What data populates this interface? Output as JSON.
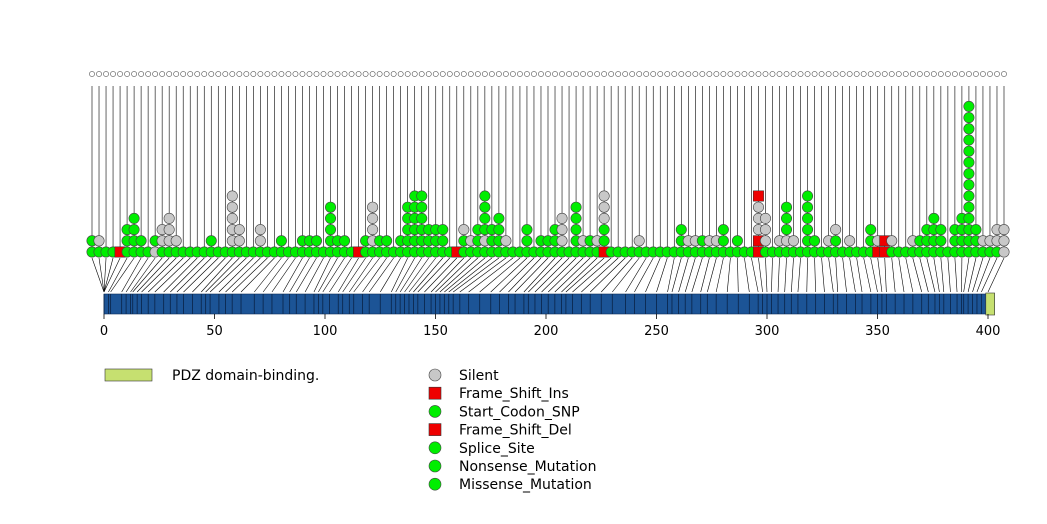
{
  "chart_data": {
    "type": "lollipop",
    "title": "",
    "xlabel": "",
    "ylabel": "",
    "xlim": [
      0,
      403
    ],
    "x_ticks": [
      0,
      50,
      100,
      150,
      200,
      250,
      300,
      350,
      400
    ],
    "protein_length": 403,
    "domains": [
      {
        "name": "PDZ domain-binding.",
        "start": 399,
        "end": 403,
        "color": "#c6e070"
      }
    ],
    "legend": {
      "domains": [
        {
          "label": "PDZ domain-binding.",
          "color": "#c6e070",
          "shape": "rect"
        }
      ],
      "mutation_types": [
        {
          "label": "Silent",
          "color": "#c8c8c8",
          "shape": "circle"
        },
        {
          "label": "Frame_Shift_Ins",
          "color": "#ee0000",
          "shape": "square"
        },
        {
          "label": "Start_Codon_SNP",
          "color": "#00ee00",
          "shape": "circle"
        },
        {
          "label": "Frame_Shift_Del",
          "color": "#ee0000",
          "shape": "square"
        },
        {
          "label": "Splice_Site",
          "color": "#00ee00",
          "shape": "circle"
        },
        {
          "label": "Nonsense_Mutation",
          "color": "#00ee00",
          "shape": "circle"
        },
        {
          "label": "Missense_Mutation",
          "color": "#00ee00",
          "shape": "circle"
        }
      ]
    },
    "colors": {
      "Silent": "#c8c8c8",
      "Missense_Mutation": "#00ee00",
      "Nonsense_Mutation": "#00ee00",
      "Splice_Site": "#00ee00",
      "Start_Codon_SNP": "#00ee00",
      "Frame_Shift_Ins": "#ee0000",
      "Frame_Shift_Del": "#ee0000",
      "protein_bar": "#1c5496",
      "domain": "#c6e070"
    },
    "mutation_stacks": [
      {
        "pos": -5,
        "types": [
          "M",
          "M"
        ]
      },
      {
        "pos": -4,
        "types": [
          "M",
          "S"
        ]
      },
      {
        "pos": -3,
        "types": [
          "M"
        ]
      },
      {
        "pos": -2,
        "types": [
          "M"
        ]
      },
      {
        "pos": 0,
        "types": [
          "F"
        ]
      },
      {
        "pos": 2,
        "types": [
          "M",
          "M",
          "M"
        ]
      },
      {
        "pos": 3,
        "types": [
          "M",
          "M",
          "M",
          "M"
        ]
      },
      {
        "pos": 8,
        "types": [
          "M",
          "M"
        ]
      },
      {
        "pos": 10,
        "types": [
          "M"
        ]
      },
      {
        "pos": 12,
        "types": [
          "S",
          "M"
        ]
      },
      {
        "pos": 13,
        "types": [
          "M",
          "S",
          "S"
        ]
      },
      {
        "pos": 15,
        "types": [
          "M",
          "S",
          "S",
          "S"
        ]
      },
      {
        "pos": 17,
        "types": [
          "M",
          "S"
        ]
      },
      {
        "pos": 20,
        "types": [
          "M"
        ]
      },
      {
        "pos": 23,
        "types": [
          "M"
        ]
      },
      {
        "pos": 27,
        "types": [
          "M"
        ]
      },
      {
        "pos": 30,
        "types": [
          "M"
        ]
      },
      {
        "pos": 33,
        "types": [
          "M",
          "M"
        ]
      },
      {
        "pos": 36,
        "types": [
          "M"
        ]
      },
      {
        "pos": 40,
        "types": [
          "M"
        ]
      },
      {
        "pos": 44,
        "types": [
          "M",
          "S",
          "S",
          "S",
          "S",
          "S"
        ]
      },
      {
        "pos": 46,
        "types": [
          "M",
          "S",
          "S"
        ]
      },
      {
        "pos": 48,
        "types": [
          "M"
        ]
      },
      {
        "pos": 52,
        "types": [
          "M"
        ]
      },
      {
        "pos": 55,
        "types": [
          "M",
          "S",
          "S"
        ]
      },
      {
        "pos": 58,
        "types": [
          "M"
        ]
      },
      {
        "pos": 62,
        "types": [
          "M"
        ]
      },
      {
        "pos": 68,
        "types": [
          "M",
          "M"
        ]
      },
      {
        "pos": 72,
        "types": [
          "M"
        ]
      },
      {
        "pos": 76,
        "types": [
          "M"
        ]
      },
      {
        "pos": 81,
        "types": [
          "M",
          "M"
        ]
      },
      {
        "pos": 84,
        "types": [
          "M",
          "M"
        ]
      },
      {
        "pos": 87,
        "types": [
          "M",
          "M"
        ]
      },
      {
        "pos": 91,
        "types": [
          "M"
        ]
      },
      {
        "pos": 95,
        "types": [
          "M",
          "M",
          "M",
          "M",
          "M"
        ]
      },
      {
        "pos": 97,
        "types": [
          "M",
          "M"
        ]
      },
      {
        "pos": 99,
        "types": [
          "M",
          "M"
        ]
      },
      {
        "pos": 102,
        "types": [
          "M"
        ]
      },
      {
        "pos": 106,
        "types": [
          "F"
        ]
      },
      {
        "pos": 108,
        "types": [
          "M",
          "M"
        ]
      },
      {
        "pos": 111,
        "types": [
          "M",
          "S",
          "S",
          "S",
          "S"
        ]
      },
      {
        "pos": 113,
        "types": [
          "M",
          "M"
        ]
      },
      {
        "pos": 117,
        "types": [
          "M",
          "M"
        ]
      },
      {
        "pos": 120,
        "types": [
          "M"
        ]
      },
      {
        "pos": 125,
        "types": [
          "M",
          "M"
        ]
      },
      {
        "pos": 130,
        "types": [
          "M",
          "M",
          "M",
          "M",
          "M"
        ]
      },
      {
        "pos": 132,
        "types": [
          "M",
          "M",
          "M",
          "M",
          "M",
          "M"
        ]
      },
      {
        "pos": 134,
        "types": [
          "M",
          "M",
          "M",
          "M",
          "M",
          "M"
        ]
      },
      {
        "pos": 136,
        "types": [
          "M",
          "M",
          "M"
        ]
      },
      {
        "pos": 138,
        "types": [
          "M",
          "M",
          "M"
        ]
      },
      {
        "pos": 140,
        "types": [
          "M",
          "M",
          "M"
        ]
      },
      {
        "pos": 142,
        "types": [
          "M"
        ]
      },
      {
        "pos": 145,
        "types": [
          "F"
        ]
      },
      {
        "pos": 148,
        "types": [
          "M",
          "M",
          "S"
        ]
      },
      {
        "pos": 150,
        "types": [
          "M",
          "S"
        ]
      },
      {
        "pos": 152,
        "types": [
          "M",
          "M",
          "M"
        ]
      },
      {
        "pos": 154,
        "types": [
          "M",
          "S",
          "M",
          "M",
          "M",
          "M"
        ]
      },
      {
        "pos": 156,
        "types": [
          "M",
          "M",
          "M"
        ]
      },
      {
        "pos": 158,
        "types": [
          "M",
          "M",
          "M",
          "M"
        ]
      },
      {
        "pos": 161,
        "types": [
          "M",
          "S"
        ]
      },
      {
        "pos": 165,
        "types": [
          "M"
        ]
      },
      {
        "pos": 170,
        "types": [
          "M"
        ]
      },
      {
        "pos": 175,
        "types": [
          "M",
          "M",
          "M"
        ]
      },
      {
        "pos": 179,
        "types": [
          "M"
        ]
      },
      {
        "pos": 183,
        "types": [
          "M",
          "M"
        ]
      },
      {
        "pos": 186,
        "types": [
          "M",
          "M"
        ]
      },
      {
        "pos": 190,
        "types": [
          "M",
          "M",
          "M"
        ]
      },
      {
        "pos": 192,
        "types": [
          "M",
          "S",
          "S",
          "S"
        ]
      },
      {
        "pos": 195,
        "types": [
          "M"
        ]
      },
      {
        "pos": 198,
        "types": [
          "M",
          "M",
          "M",
          "M",
          "M"
        ]
      },
      {
        "pos": 201,
        "types": [
          "M",
          "S"
        ]
      },
      {
        "pos": 204,
        "types": [
          "M",
          "M"
        ]
      },
      {
        "pos": 207,
        "types": [
          "M",
          "S"
        ]
      },
      {
        "pos": 209,
        "types": [
          "F",
          "M",
          "M",
          "S",
          "S",
          "S"
        ]
      },
      {
        "pos": 212,
        "types": [
          "M"
        ]
      },
      {
        "pos": 216,
        "types": [
          "M"
        ]
      },
      {
        "pos": 220,
        "types": [
          "M"
        ]
      },
      {
        "pos": 225,
        "types": [
          "M"
        ]
      },
      {
        "pos": 230,
        "types": [
          "M",
          "S"
        ]
      },
      {
        "pos": 236,
        "types": [
          "M"
        ]
      },
      {
        "pos": 240,
        "types": [
          "M"
        ]
      },
      {
        "pos": 245,
        "types": [
          "M"
        ]
      },
      {
        "pos": 250,
        "types": [
          "M"
        ]
      },
      {
        "pos": 255,
        "types": [
          "M"
        ]
      },
      {
        "pos": 257,
        "types": [
          "M",
          "M",
          "M"
        ]
      },
      {
        "pos": 260,
        "types": [
          "M",
          "S"
        ]
      },
      {
        "pos": 263,
        "types": [
          "M",
          "S"
        ]
      },
      {
        "pos": 266,
        "types": [
          "M",
          "M"
        ]
      },
      {
        "pos": 270,
        "types": [
          "M",
          "S"
        ]
      },
      {
        "pos": 273,
        "types": [
          "M",
          "S"
        ]
      },
      {
        "pos": 277,
        "types": [
          "M",
          "M",
          "M"
        ]
      },
      {
        "pos": 282,
        "types": [
          "M"
        ]
      },
      {
        "pos": 287,
        "types": [
          "M",
          "M"
        ]
      },
      {
        "pos": 292,
        "types": [
          "M"
        ]
      },
      {
        "pos": 296,
        "types": [
          "M"
        ]
      },
      {
        "pos": 298,
        "types": [
          "F",
          "F",
          "S",
          "S",
          "S",
          "F"
        ]
      },
      {
        "pos": 300,
        "types": [
          "M",
          "S",
          "S",
          "S"
        ]
      },
      {
        "pos": 302,
        "types": [
          "M"
        ]
      },
      {
        "pos": 305,
        "types": [
          "M",
          "S"
        ]
      },
      {
        "pos": 308,
        "types": [
          "M",
          "S",
          "M",
          "M",
          "M"
        ]
      },
      {
        "pos": 311,
        "types": [
          "M",
          "S"
        ]
      },
      {
        "pos": 314,
        "types": [
          "M"
        ]
      },
      {
        "pos": 318,
        "types": [
          "M",
          "M",
          "M",
          "M",
          "M",
          "M"
        ]
      },
      {
        "pos": 322,
        "types": [
          "M",
          "M"
        ]
      },
      {
        "pos": 326,
        "types": [
          "M"
        ]
      },
      {
        "pos": 330,
        "types": [
          "M",
          "S"
        ]
      },
      {
        "pos": 332,
        "types": [
          "M",
          "M",
          "S"
        ]
      },
      {
        "pos": 336,
        "types": [
          "M"
        ]
      },
      {
        "pos": 340,
        "types": [
          "M",
          "S"
        ]
      },
      {
        "pos": 343,
        "types": [
          "M"
        ]
      },
      {
        "pos": 347,
        "types": [
          "M"
        ]
      },
      {
        "pos": 350,
        "types": [
          "M",
          "M",
          "M"
        ]
      },
      {
        "pos": 352,
        "types": [
          "F",
          "S"
        ]
      },
      {
        "pos": 354,
        "types": [
          "F",
          "F"
        ]
      },
      {
        "pos": 358,
        "types": [
          "M",
          "S"
        ]
      },
      {
        "pos": 362,
        "types": [
          "M"
        ]
      },
      {
        "pos": 366,
        "types": [
          "M"
        ]
      },
      {
        "pos": 370,
        "types": [
          "M",
          "S"
        ]
      },
      {
        "pos": 373,
        "types": [
          "M",
          "M"
        ]
      },
      {
        "pos": 376,
        "types": [
          "M",
          "M",
          "M"
        ]
      },
      {
        "pos": 378,
        "types": [
          "M",
          "M",
          "M",
          "M"
        ]
      },
      {
        "pos": 380,
        "types": [
          "M",
          "M",
          "M"
        ]
      },
      {
        "pos": 383,
        "types": [
          "M"
        ]
      },
      {
        "pos": 386,
        "types": [
          "M",
          "M",
          "M"
        ]
      },
      {
        "pos": 388,
        "types": [
          "M",
          "M",
          "M",
          "M"
        ]
      },
      {
        "pos": 389,
        "types": [
          "M",
          "M",
          "M",
          "M",
          "M",
          "M",
          "M",
          "M",
          "M",
          "M",
          "M",
          "M",
          "M",
          "M"
        ]
      },
      {
        "pos": 391,
        "types": [
          "M",
          "M",
          "M"
        ]
      },
      {
        "pos": 393,
        "types": [
          "M",
          "S"
        ]
      },
      {
        "pos": 395,
        "types": [
          "M",
          "S"
        ]
      },
      {
        "pos": 397,
        "types": [
          "M",
          "S",
          "S"
        ]
      },
      {
        "pos": 400,
        "types": [
          "S",
          "S",
          "S"
        ]
      }
    ]
  }
}
